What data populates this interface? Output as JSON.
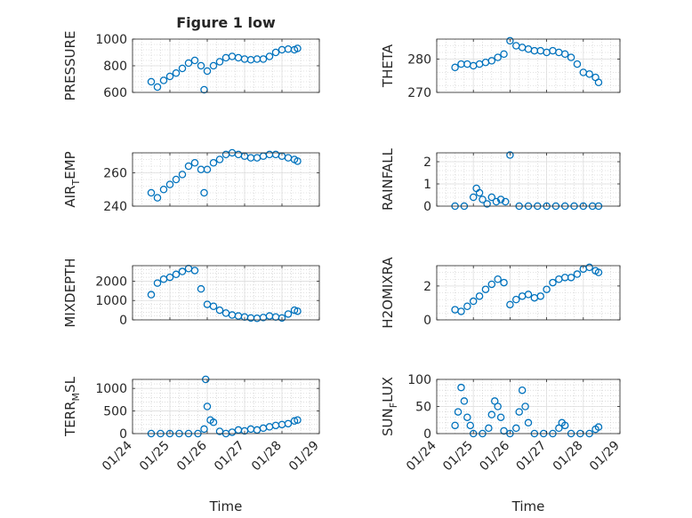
{
  "figure": {
    "title": "Figure 1 low",
    "xlabel_left": "Time",
    "xlabel_right": "Time"
  },
  "colors": {
    "marker": "#0072BD",
    "axis": "#262626",
    "grid": "#c8c8c8"
  },
  "xaxis": {
    "tick_values": [
      "2024-01-24",
      "2024-01-25",
      "2024-01-26",
      "2024-01-27",
      "2024-01-28",
      "2024-01-29"
    ],
    "tick_labels": [
      "01/24",
      "01/25",
      "01/26",
      "01/27",
      "01/28",
      "01/29"
    ]
  },
  "chart_data": [
    {
      "type": "scatter",
      "ylabel_main": "PRESSURE",
      "ylabel_sub": "",
      "ylabel_tail": "",
      "ylim": [
        600,
        1000
      ],
      "yticks": [
        600,
        800,
        1000
      ],
      "ytick_labels": [
        "600",
        "800",
        "1000"
      ],
      "grid": true,
      "x": [
        "2024-01-24T12:00",
        "2024-01-24T16:00",
        "2024-01-24T20:00",
        "2024-01-25T00:00",
        "2024-01-25T04:00",
        "2024-01-25T08:00",
        "2024-01-25T12:00",
        "2024-01-25T16:00",
        "2024-01-25T20:00",
        "2024-01-25T22:00",
        "2024-01-26T00:00",
        "2024-01-26T04:00",
        "2024-01-26T08:00",
        "2024-01-26T12:00",
        "2024-01-26T16:00",
        "2024-01-26T20:00",
        "2024-01-27T00:00",
        "2024-01-27T04:00",
        "2024-01-27T08:00",
        "2024-01-27T12:00",
        "2024-01-27T16:00",
        "2024-01-27T20:00",
        "2024-01-28T00:00",
        "2024-01-28T04:00",
        "2024-01-28T08:00",
        "2024-01-28T10:00"
      ],
      "y": [
        680,
        640,
        690,
        720,
        745,
        780,
        820,
        840,
        800,
        620,
        760,
        800,
        830,
        860,
        870,
        860,
        850,
        845,
        850,
        850,
        870,
        900,
        920,
        925,
        920,
        930
      ]
    },
    {
      "type": "scatter",
      "ylabel_main": "THETA",
      "ylabel_sub": "",
      "ylabel_tail": "",
      "ylim": [
        270,
        286
      ],
      "yticks": [
        270,
        280
      ],
      "ytick_labels": [
        "270",
        "280"
      ],
      "grid": true,
      "x": [
        "2024-01-24T12:00",
        "2024-01-24T16:00",
        "2024-01-24T20:00",
        "2024-01-25T00:00",
        "2024-01-25T04:00",
        "2024-01-25T08:00",
        "2024-01-25T12:00",
        "2024-01-25T16:00",
        "2024-01-25T20:00",
        "2024-01-26T00:00",
        "2024-01-26T04:00",
        "2024-01-26T08:00",
        "2024-01-26T12:00",
        "2024-01-26T16:00",
        "2024-01-26T20:00",
        "2024-01-27T00:00",
        "2024-01-27T04:00",
        "2024-01-27T08:00",
        "2024-01-27T12:00",
        "2024-01-27T16:00",
        "2024-01-27T20:00",
        "2024-01-28T00:00",
        "2024-01-28T04:00",
        "2024-01-28T08:00",
        "2024-01-28T10:00"
      ],
      "y": [
        277.5,
        278.5,
        278.5,
        278,
        278.5,
        279,
        279.5,
        280.5,
        281.5,
        285.5,
        284,
        283.5,
        283,
        282.5,
        282.5,
        282,
        282.5,
        282,
        281.5,
        280.5,
        278.5,
        276,
        275.5,
        274.5,
        273
      ]
    },
    {
      "type": "scatter",
      "ylabel_main": "AIR",
      "ylabel_sub": "T",
      "ylabel_tail": "EMP",
      "ylim": [
        240,
        272
      ],
      "yticks": [
        240,
        260
      ],
      "ytick_labels": [
        "240",
        "260"
      ],
      "grid": true,
      "x": [
        "2024-01-24T12:00",
        "2024-01-24T16:00",
        "2024-01-24T20:00",
        "2024-01-25T00:00",
        "2024-01-25T04:00",
        "2024-01-25T08:00",
        "2024-01-25T12:00",
        "2024-01-25T16:00",
        "2024-01-25T20:00",
        "2024-01-25T22:00",
        "2024-01-26T00:00",
        "2024-01-26T04:00",
        "2024-01-26T08:00",
        "2024-01-26T12:00",
        "2024-01-26T16:00",
        "2024-01-26T20:00",
        "2024-01-27T00:00",
        "2024-01-27T04:00",
        "2024-01-27T08:00",
        "2024-01-27T12:00",
        "2024-01-27T16:00",
        "2024-01-27T20:00",
        "2024-01-28T00:00",
        "2024-01-28T04:00",
        "2024-01-28T08:00",
        "2024-01-28T10:00"
      ],
      "y": [
        248,
        245,
        250,
        253,
        256,
        259,
        264,
        266,
        262,
        248,
        262,
        266,
        268,
        271,
        272,
        271,
        270,
        269,
        269,
        270,
        271,
        271,
        270,
        269,
        268,
        267
      ]
    },
    {
      "type": "scatter",
      "ylabel_main": "RAINFALL",
      "ylabel_sub": "",
      "ylabel_tail": "",
      "ylim": [
        0,
        2.4
      ],
      "yticks": [
        0,
        1,
        2
      ],
      "ytick_labels": [
        "0",
        "1",
        "2"
      ],
      "grid": true,
      "x": [
        "2024-01-24T12:00",
        "2024-01-24T18:00",
        "2024-01-25T00:00",
        "2024-01-25T02:00",
        "2024-01-25T04:00",
        "2024-01-25T06:00",
        "2024-01-25T09:00",
        "2024-01-25T12:00",
        "2024-01-25T15:00",
        "2024-01-25T18:00",
        "2024-01-25T21:00",
        "2024-01-26T00:00",
        "2024-01-26T06:00",
        "2024-01-26T12:00",
        "2024-01-26T18:00",
        "2024-01-27T00:00",
        "2024-01-27T06:00",
        "2024-01-27T12:00",
        "2024-01-27T18:00",
        "2024-01-28T00:00",
        "2024-01-28T06:00",
        "2024-01-28T10:00"
      ],
      "y": [
        0,
        0,
        0.4,
        0.8,
        0.6,
        0.3,
        0.1,
        0.4,
        0.2,
        0.3,
        0.2,
        2.3,
        0,
        0,
        0,
        0,
        0,
        0,
        0,
        0,
        0,
        0
      ]
    },
    {
      "type": "scatter",
      "ylabel_main": "MIXDEPTH",
      "ylabel_sub": "",
      "ylabel_tail": "",
      "ylim": [
        0,
        2800
      ],
      "yticks": [
        0,
        1000,
        2000
      ],
      "ytick_labels": [
        "0",
        "1000",
        "2000"
      ],
      "grid": true,
      "x": [
        "2024-01-24T12:00",
        "2024-01-24T16:00",
        "2024-01-24T20:00",
        "2024-01-25T00:00",
        "2024-01-25T04:00",
        "2024-01-25T08:00",
        "2024-01-25T12:00",
        "2024-01-25T16:00",
        "2024-01-25T20:00",
        "2024-01-26T00:00",
        "2024-01-26T04:00",
        "2024-01-26T08:00",
        "2024-01-26T12:00",
        "2024-01-26T16:00",
        "2024-01-26T20:00",
        "2024-01-27T00:00",
        "2024-01-27T04:00",
        "2024-01-27T08:00",
        "2024-01-27T12:00",
        "2024-01-27T16:00",
        "2024-01-27T20:00",
        "2024-01-28T00:00",
        "2024-01-28T04:00",
        "2024-01-28T08:00",
        "2024-01-28T10:00"
      ],
      "y": [
        1300,
        1900,
        2100,
        2200,
        2350,
        2500,
        2650,
        2550,
        1600,
        800,
        700,
        500,
        350,
        250,
        200,
        150,
        100,
        80,
        120,
        200,
        150,
        100,
        300,
        500,
        450
      ]
    },
    {
      "type": "scatter",
      "ylabel_main": "H2OMIXRA",
      "ylabel_sub": "",
      "ylabel_tail": "",
      "ylim": [
        0,
        3.2
      ],
      "yticks": [
        0,
        2
      ],
      "ytick_labels": [
        "0",
        "2"
      ],
      "grid": true,
      "x": [
        "2024-01-24T12:00",
        "2024-01-24T16:00",
        "2024-01-24T20:00",
        "2024-01-25T00:00",
        "2024-01-25T04:00",
        "2024-01-25T08:00",
        "2024-01-25T12:00",
        "2024-01-25T16:00",
        "2024-01-25T20:00",
        "2024-01-26T00:00",
        "2024-01-26T04:00",
        "2024-01-26T08:00",
        "2024-01-26T12:00",
        "2024-01-26T16:00",
        "2024-01-26T20:00",
        "2024-01-27T00:00",
        "2024-01-27T04:00",
        "2024-01-27T08:00",
        "2024-01-27T12:00",
        "2024-01-27T16:00",
        "2024-01-27T20:00",
        "2024-01-28T00:00",
        "2024-01-28T04:00",
        "2024-01-28T08:00",
        "2024-01-28T10:00"
      ],
      "y": [
        0.6,
        0.5,
        0.8,
        1.1,
        1.4,
        1.8,
        2.1,
        2.4,
        2.2,
        0.9,
        1.2,
        1.4,
        1.5,
        1.3,
        1.4,
        1.8,
        2.2,
        2.4,
        2.5,
        2.5,
        2.7,
        3.0,
        3.1,
        2.9,
        2.8
      ]
    },
    {
      "type": "scatter",
      "ylabel_main": "TERR",
      "ylabel_sub": "M",
      "ylabel_tail": "SL",
      "ylim": [
        0,
        1200
      ],
      "yticks": [
        0,
        500,
        1000
      ],
      "ytick_labels": [
        "0",
        "500",
        "1000"
      ],
      "grid": true,
      "x": [
        "2024-01-24T12:00",
        "2024-01-24T18:00",
        "2024-01-25T00:00",
        "2024-01-25T06:00",
        "2024-01-25T12:00",
        "2024-01-25T18:00",
        "2024-01-25T22:00",
        "2024-01-25T23:00",
        "2024-01-26T00:00",
        "2024-01-26T02:00",
        "2024-01-26T04:00",
        "2024-01-26T08:00",
        "2024-01-26T12:00",
        "2024-01-26T16:00",
        "2024-01-26T20:00",
        "2024-01-27T00:00",
        "2024-01-27T04:00",
        "2024-01-27T08:00",
        "2024-01-27T12:00",
        "2024-01-27T16:00",
        "2024-01-27T20:00",
        "2024-01-28T00:00",
        "2024-01-28T04:00",
        "2024-01-28T08:00",
        "2024-01-28T10:00"
      ],
      "y": [
        0,
        0,
        0,
        0,
        0,
        0,
        100,
        1200,
        600,
        300,
        250,
        50,
        0,
        30,
        80,
        60,
        100,
        80,
        120,
        150,
        180,
        200,
        220,
        280,
        300
      ]
    },
    {
      "type": "scatter",
      "ylabel_main": "SUN",
      "ylabel_sub": "F",
      "ylabel_tail": "LUX",
      "ylim": [
        0,
        100
      ],
      "yticks": [
        0,
        50,
        100
      ],
      "ytick_labels": [
        "0",
        "50",
        "100"
      ],
      "grid": true,
      "x": [
        "2024-01-24T12:00",
        "2024-01-24T14:00",
        "2024-01-24T16:00",
        "2024-01-24T18:00",
        "2024-01-24T20:00",
        "2024-01-24T22:00",
        "2024-01-25T00:00",
        "2024-01-25T06:00",
        "2024-01-25T10:00",
        "2024-01-25T12:00",
        "2024-01-25T14:00",
        "2024-01-25T16:00",
        "2024-01-25T18:00",
        "2024-01-25T20:00",
        "2024-01-26T00:00",
        "2024-01-26T04:00",
        "2024-01-26T06:00",
        "2024-01-26T08:00",
        "2024-01-26T10:00",
        "2024-01-26T12:00",
        "2024-01-26T16:00",
        "2024-01-26T22:00",
        "2024-01-27T04:00",
        "2024-01-27T08:00",
        "2024-01-27T10:00",
        "2024-01-27T12:00",
        "2024-01-27T16:00",
        "2024-01-27T22:00",
        "2024-01-28T04:00",
        "2024-01-28T08:00",
        "2024-01-28T10:00"
      ],
      "y": [
        15,
        40,
        85,
        60,
        30,
        15,
        0,
        0,
        10,
        35,
        60,
        50,
        30,
        5,
        0,
        10,
        40,
        80,
        50,
        20,
        0,
        0,
        0,
        10,
        20,
        15,
        0,
        0,
        0,
        8,
        12
      ]
    }
  ]
}
